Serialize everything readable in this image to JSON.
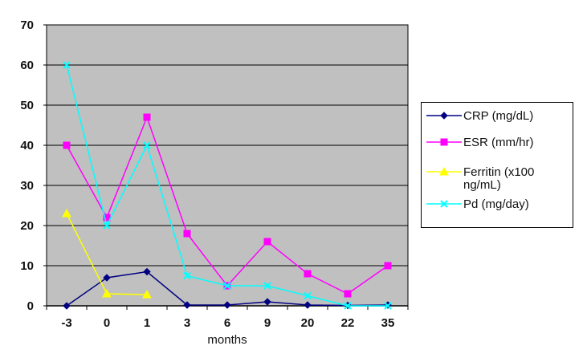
{
  "chart_data": {
    "type": "line",
    "xlabel": "months",
    "ylabel": "",
    "title": "",
    "categories": [
      "-3",
      "0",
      "1",
      "3",
      "6",
      "9",
      "20",
      "22",
      "35"
    ],
    "ylim": [
      0,
      70
    ],
    "yticks": [
      "0",
      "10",
      "20",
      "30",
      "40",
      "50",
      "60",
      "70"
    ],
    "grid": true,
    "legend_position": "right",
    "plot_background": "#c0c0c0",
    "series": [
      {
        "name": "CRP (mg/dL)",
        "color": "#000080",
        "marker": "diamond",
        "values": [
          0,
          7,
          8.5,
          0.2,
          0.2,
          1,
          0.2,
          0.1,
          0.2
        ]
      },
      {
        "name": "ESR (mm/hr)",
        "color": "#ff00ff",
        "marker": "square",
        "values": [
          40,
          22,
          47,
          18,
          5,
          16,
          8,
          3,
          10
        ]
      },
      {
        "name": "Ferritin (x100\nng/mL)",
        "color": "#ffff00",
        "marker": "triangle",
        "values": [
          23,
          3,
          2.8,
          null,
          null,
          null,
          null,
          null,
          null
        ]
      },
      {
        "name": "Pd (mg/day)",
        "color": "#00ffff",
        "marker": "x",
        "values": [
          60,
          20,
          40,
          7.5,
          5,
          5,
          2.5,
          0,
          0
        ]
      }
    ]
  }
}
